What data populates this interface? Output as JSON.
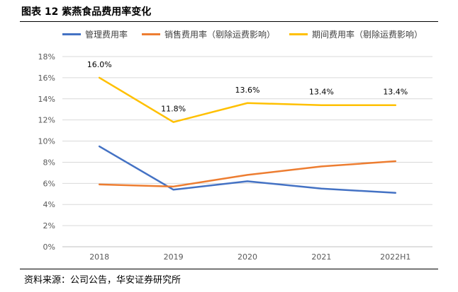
{
  "figure": {
    "title": "图表 12  紫燕食品费用率变化",
    "source": "资料来源：公司公告，华安证券研究所"
  },
  "chart_data": {
    "type": "line",
    "title": "紫燕食品费用率变化",
    "categories": [
      "2018",
      "2019",
      "2020",
      "2021",
      "2022H1"
    ],
    "ylim": [
      0,
      18
    ],
    "yticks": [
      0,
      2,
      4,
      6,
      8,
      10,
      12,
      14,
      16,
      18
    ],
    "y_tick_labels": [
      "0%",
      "2%",
      "4%",
      "6%",
      "8%",
      "10%",
      "12%",
      "14%",
      "16%",
      "18%"
    ],
    "xlabel": "",
    "ylabel": "",
    "grid": true,
    "legend_position": "top",
    "series": [
      {
        "name": "管理费用率",
        "color": "#4472C4",
        "values": [
          9.5,
          5.4,
          6.2,
          5.5,
          5.1
        ]
      },
      {
        "name": "销售费用率（剔除运费影响）",
        "color": "#ED7D31",
        "values": [
          5.9,
          5.7,
          6.8,
          7.6,
          8.1
        ]
      },
      {
        "name": "期间费用率（剔除运费影响）",
        "color": "#FFC000",
        "values": [
          16.0,
          11.8,
          13.6,
          13.4,
          13.4
        ],
        "labels": [
          "16.0%",
          "11.8%",
          "13.6%",
          "13.4%",
          "13.4%"
        ]
      }
    ]
  }
}
